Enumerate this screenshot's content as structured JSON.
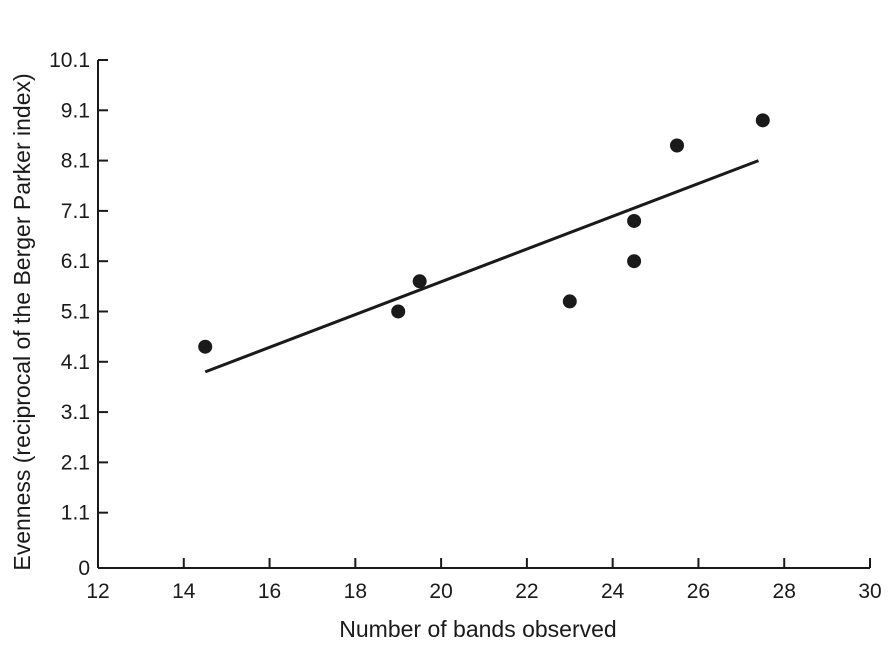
{
  "chart_data": {
    "type": "scatter",
    "title": "",
    "xlabel": "Number of bands observed",
    "ylabel": "Evenness (reciprocal of the Berger Parker index)",
    "xlim": [
      12,
      30
    ],
    "ylim": [
      0,
      10.1
    ],
    "x_ticks": [
      12,
      14,
      16,
      18,
      20,
      22,
      24,
      26,
      28,
      30
    ],
    "y_ticks": [
      0,
      1.1,
      2.1,
      3.1,
      4.1,
      5.1,
      6.1,
      7.1,
      8.1,
      9.1,
      10.1
    ],
    "y_tick_labels": [
      "0",
      "1.1",
      "2.1",
      "3.1",
      "4.1",
      "5.1",
      "6.1",
      "7.1",
      "8.1",
      "9.1",
      "10.1"
    ],
    "grid": false,
    "points": [
      {
        "x": 14.5,
        "y": 4.4
      },
      {
        "x": 19.0,
        "y": 5.1
      },
      {
        "x": 19.5,
        "y": 5.7
      },
      {
        "x": 23.0,
        "y": 5.3
      },
      {
        "x": 24.5,
        "y": 6.9
      },
      {
        "x": 24.5,
        "y": 6.1
      },
      {
        "x": 25.5,
        "y": 8.4
      },
      {
        "x": 27.5,
        "y": 8.9
      }
    ],
    "trendline": {
      "x": [
        14.5,
        27.4
      ],
      "y": [
        3.9,
        8.1
      ]
    },
    "colors": {
      "marker": "#1a1a1a",
      "line": "#1a1a1a",
      "axis": "#1a1a1a"
    }
  }
}
